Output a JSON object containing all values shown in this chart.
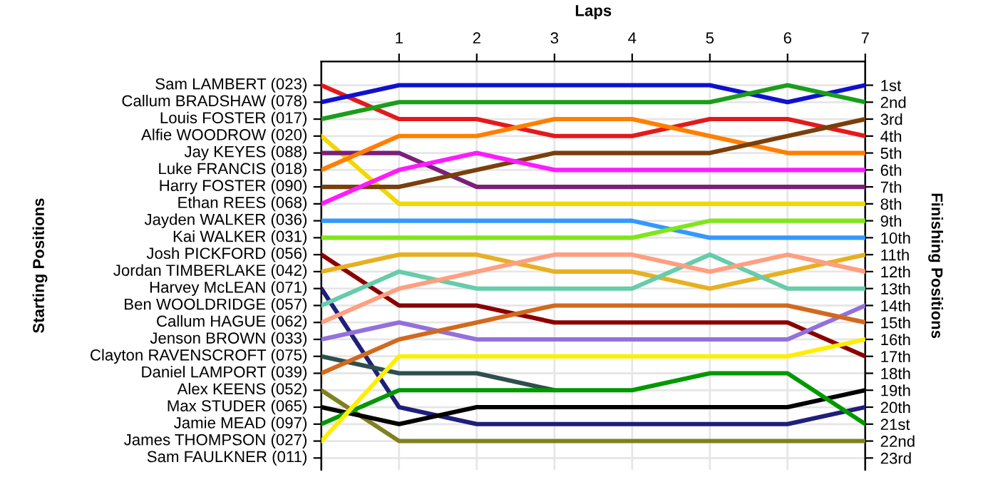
{
  "chart_data": {
    "type": "line",
    "xlabel": "Laps",
    "y2label": "Finishing Positions",
    "x": [
      0,
      1,
      2,
      3,
      4,
      5,
      6,
      7
    ],
    "xlim": [
      0,
      7
    ],
    "xticks": [
      1,
      2,
      3,
      4,
      5,
      6,
      7
    ],
    "y2lim": [
      23.7,
      -0.4
    ],
    "grid": true,
    "marker": "none",
    "line_style": "solid",
    "annotations": [
      "Starting Positions",
      "Sam LAMBERT (023)",
      "Callum BRADSHAW (078)",
      "Louis FOSTER (017)",
      "Alfie WOODROW (020)",
      "Jay KEYES (088)",
      "Luke FRANCIS (018)",
      "Harry FOSTER (090)",
      "Ethan REES (068)",
      "Jayden WALKER (036)",
      "Kai WALKER (031)",
      "Josh PICKFORD (056)",
      "Jordan TIMBERLAKE (042)",
      "Harvey McLEAN (071)",
      "Ben WOOLDRIDGE (057)",
      "Callum HAGUE (062)",
      "Jenson BROWN (033)",
      "Clayton RAVENSCROFT (075)",
      "Daniel LAMPORT (039)",
      "Alex KEENS (052)",
      "Max STUDER (065)",
      "Jamie MEAD (097)",
      "James THOMPSON (027)",
      "Sam FAULKNER (011)"
    ],
    "y2ticks": [
      {
        "value": 1,
        "label": "1st"
      },
      {
        "value": 2,
        "label": "2nd"
      },
      {
        "value": 3,
        "label": "3rd"
      },
      {
        "value": 4,
        "label": "4th"
      },
      {
        "value": 5,
        "label": "5th"
      },
      {
        "value": 6,
        "label": "6th"
      },
      {
        "value": 7,
        "label": "7th"
      },
      {
        "value": 8,
        "label": "8th"
      },
      {
        "value": 9,
        "label": "9th"
      },
      {
        "value": 10,
        "label": "10th"
      },
      {
        "value": 11,
        "label": "11th"
      },
      {
        "value": 12,
        "label": "12th"
      },
      {
        "value": 13,
        "label": "13th"
      },
      {
        "value": 14,
        "label": "14th"
      },
      {
        "value": 15,
        "label": "15th"
      },
      {
        "value": 16,
        "label": "16th"
      },
      {
        "value": 17,
        "label": "17th"
      },
      {
        "value": 18,
        "label": "18th"
      },
      {
        "value": 19,
        "label": "19th"
      },
      {
        "value": 20,
        "label": "20th"
      },
      {
        "value": 21,
        "label": "21st"
      },
      {
        "value": 22,
        "label": "22nd"
      },
      {
        "value": 23,
        "label": "23rd"
      }
    ],
    "series": [
      {
        "axis": "y2",
        "color": "#e31a1c",
        "values": [
          1,
          3,
          3,
          4,
          4,
          3,
          3,
          4
        ]
      },
      {
        "axis": "y2",
        "color": "#1010d0",
        "values": [
          2,
          1,
          1,
          1,
          1,
          1,
          2,
          1
        ]
      },
      {
        "axis": "y2",
        "color": "#1a9e1a",
        "values": [
          3,
          2,
          2,
          2,
          2,
          2,
          1,
          2
        ]
      },
      {
        "axis": "y2",
        "color": "#f0d800",
        "values": [
          4,
          8,
          8,
          8,
          8,
          8,
          8,
          8
        ]
      },
      {
        "axis": "y2",
        "color": "#7b1f7b",
        "values": [
          5,
          5,
          7,
          7,
          7,
          7,
          7,
          7
        ]
      },
      {
        "axis": "y2",
        "color": "#ff7f00",
        "values": [
          6,
          4,
          4,
          3,
          3,
          4,
          5,
          5
        ]
      },
      {
        "axis": "y2",
        "color": "#7a3f0a",
        "values": [
          7,
          7,
          6,
          5,
          5,
          5,
          4,
          3
        ]
      },
      {
        "axis": "y2",
        "color": "#ff1aff",
        "values": [
          8,
          6,
          5,
          6,
          6,
          6,
          6,
          6
        ]
      },
      {
        "axis": "y2",
        "color": "#3399ff",
        "values": [
          9,
          9,
          9,
          9,
          9,
          10,
          10,
          10
        ]
      },
      {
        "axis": "y2",
        "color": "#80e61a",
        "values": [
          10,
          10,
          10,
          10,
          10,
          9,
          9,
          9
        ]
      },
      {
        "axis": "y2",
        "color": "#8b0000",
        "values": [
          11,
          14,
          14,
          15,
          15,
          15,
          15,
          17
        ]
      },
      {
        "axis": "y2",
        "color": "#e6b020",
        "values": [
          12,
          11,
          11,
          12,
          12,
          13,
          12,
          11
        ]
      },
      {
        "axis": "y2",
        "color": "#1f1f7a",
        "values": [
          13,
          20,
          21,
          21,
          21,
          21,
          21,
          20
        ]
      },
      {
        "axis": "y2",
        "color": "#66ccaa",
        "values": [
          14,
          12,
          13,
          13,
          13,
          11,
          13,
          13
        ]
      },
      {
        "axis": "y2",
        "color": "#ff9f80",
        "values": [
          15,
          13,
          12,
          11,
          11,
          12,
          11,
          12
        ]
      },
      {
        "axis": "y2",
        "color": "#9370db",
        "values": [
          16,
          15,
          16,
          16,
          16,
          16,
          16,
          14
        ]
      },
      {
        "axis": "y2",
        "color": "#2f4f4f",
        "values": [
          17,
          18,
          18,
          19,
          null,
          null,
          null,
          null
        ]
      },
      {
        "axis": "y2",
        "color": "#d2691e",
        "values": [
          18,
          16,
          15,
          14,
          14,
          14,
          14,
          15
        ]
      },
      {
        "axis": "y2",
        "color": "#808020",
        "values": [
          19,
          22,
          22,
          22,
          22,
          22,
          22,
          22
        ]
      },
      {
        "axis": "y2",
        "color": "#000000",
        "values": [
          20,
          21,
          20,
          20,
          20,
          20,
          20,
          19
        ]
      },
      {
        "axis": "y2",
        "color": "#009900",
        "values": [
          21,
          19,
          19,
          19,
          19,
          18,
          18,
          21
        ]
      },
      {
        "axis": "y2",
        "color": "#ffee00",
        "values": [
          22,
          17,
          17,
          17,
          17,
          17,
          17,
          16
        ]
      }
    ]
  }
}
